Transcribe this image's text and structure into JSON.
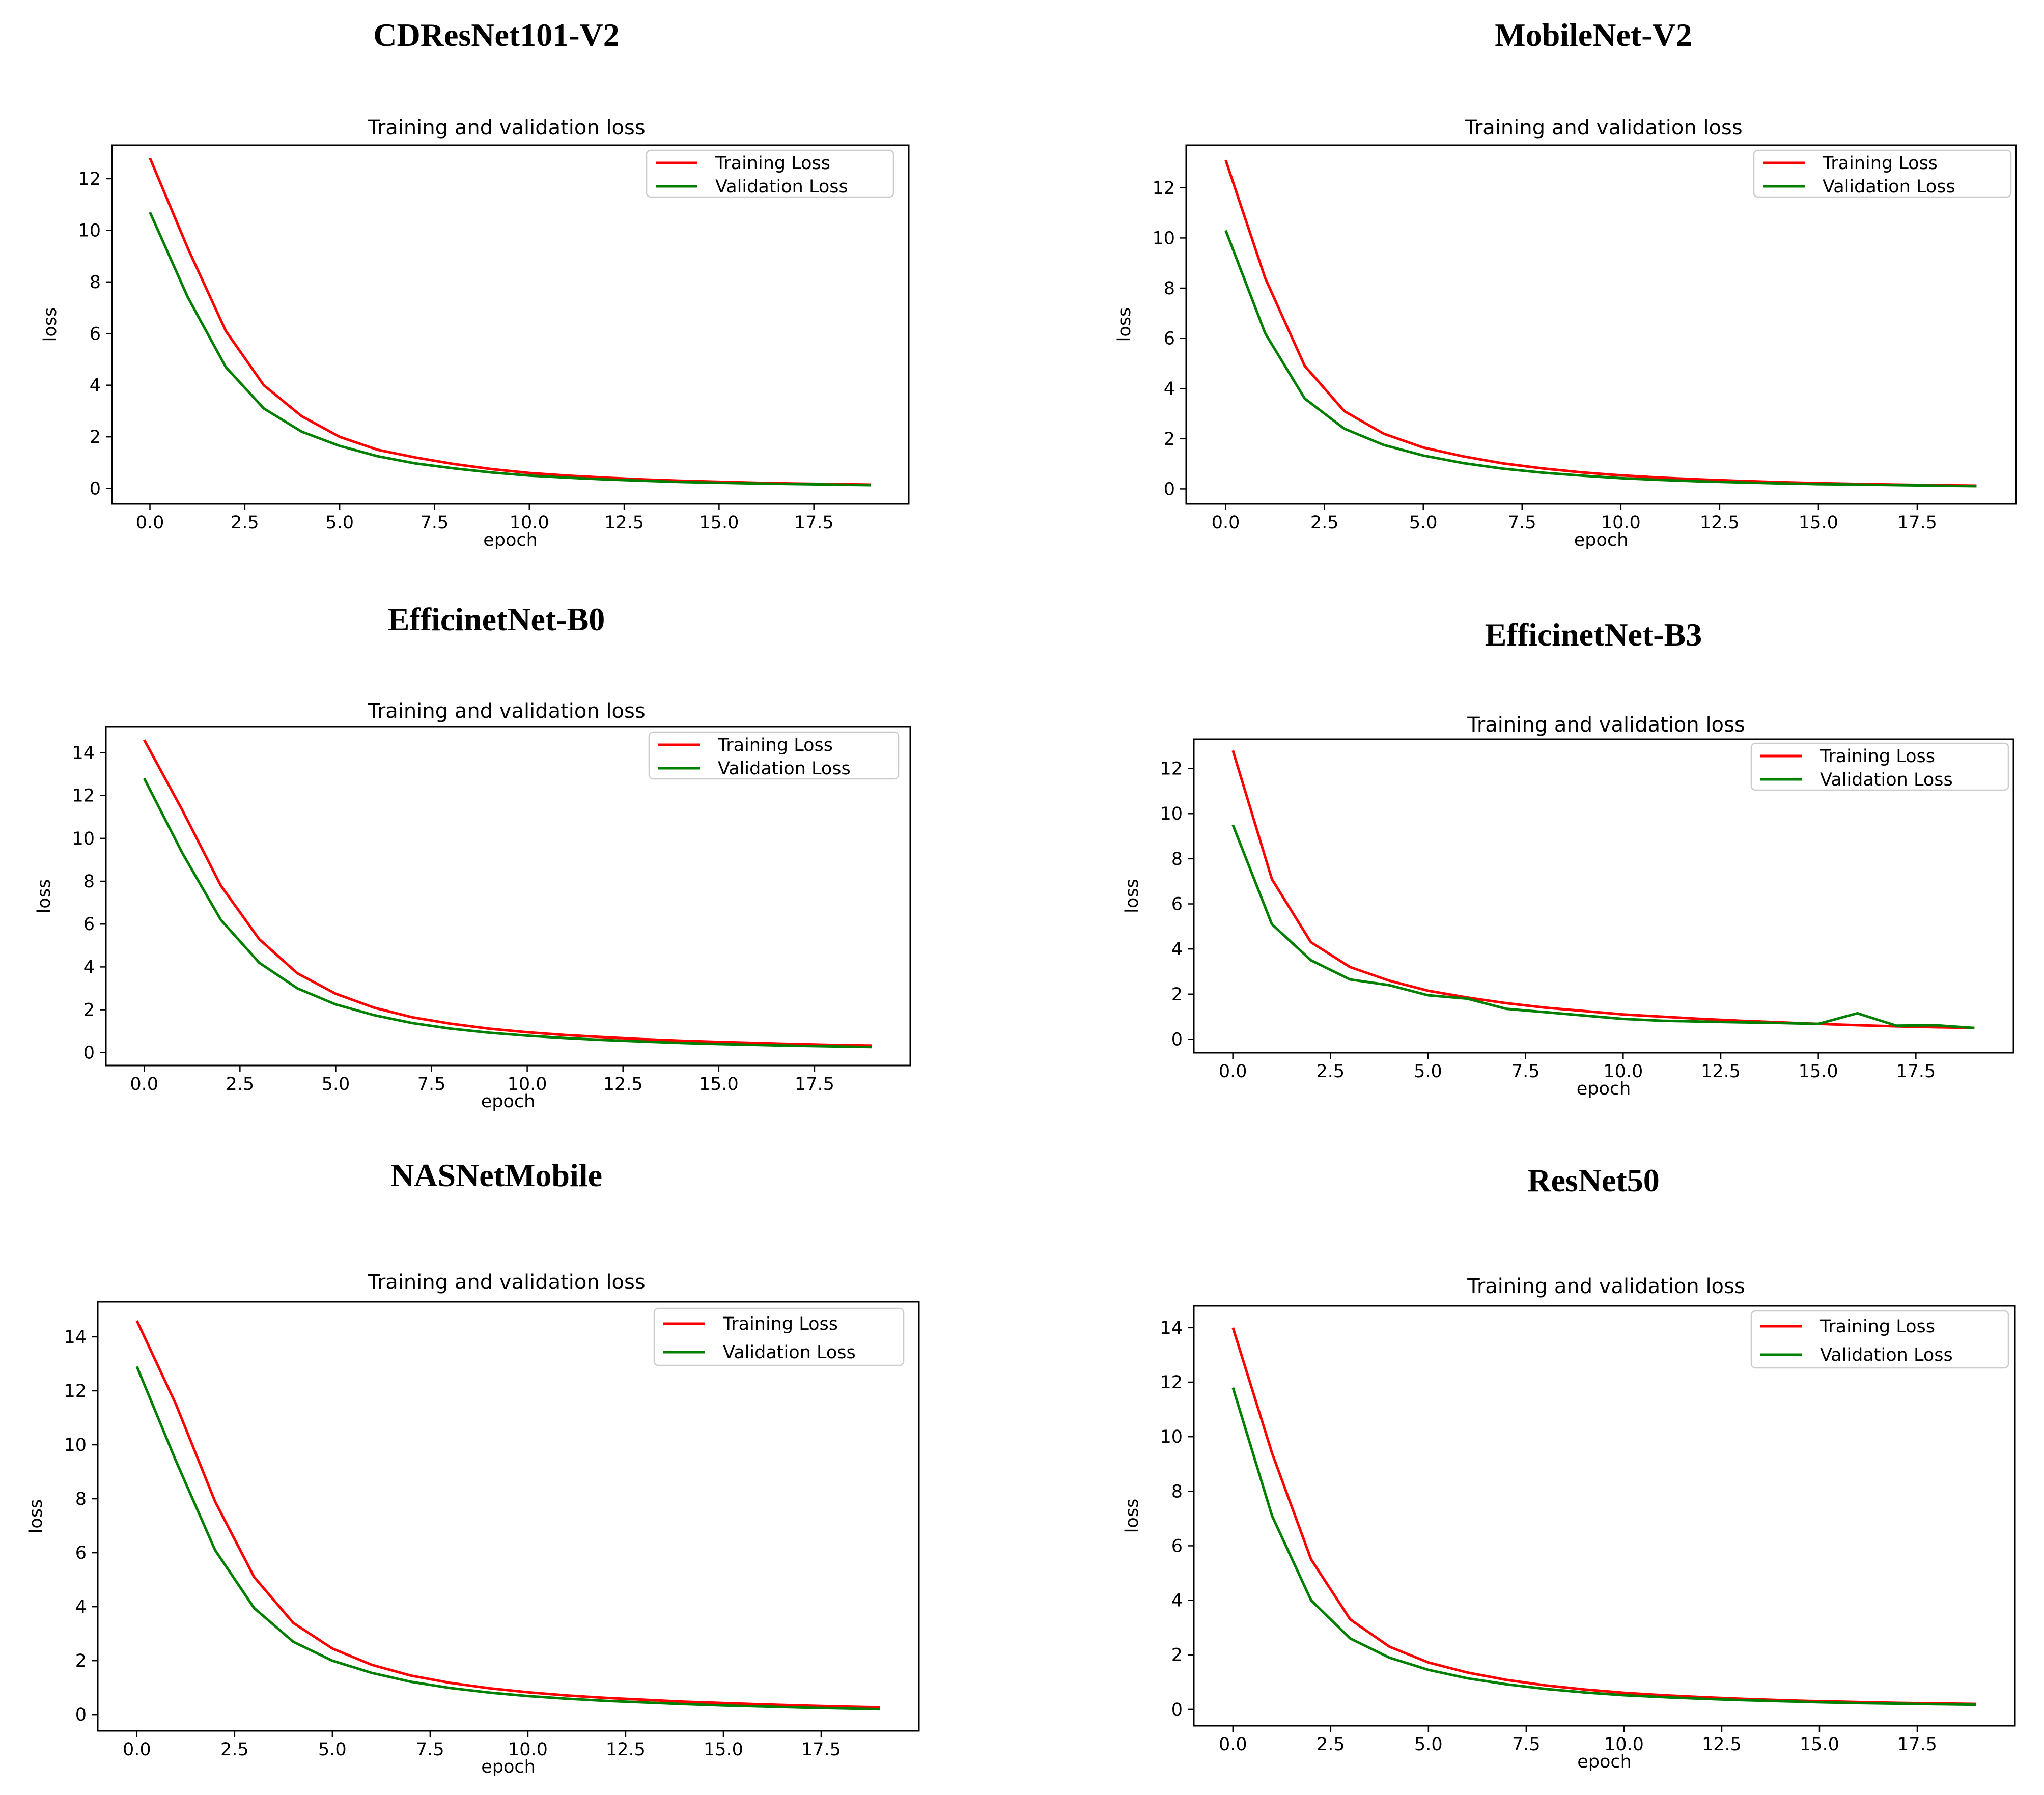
{
  "colors": {
    "training": "#ff0000",
    "validation": "#008000",
    "axis": "#000000"
  },
  "chart_data": [
    {
      "type": "line",
      "heading": "CDResNet101-V2",
      "title": "Training and validation loss",
      "xlabel": "epoch",
      "ylabel": "loss",
      "xlim": [
        -1,
        20
      ],
      "ylim": [
        -0.6,
        13.3
      ],
      "xticks": [
        "0.0",
        "2.5",
        "5.0",
        "7.5",
        "10.0",
        "12.5",
        "15.0",
        "17.5"
      ],
      "yticks": [
        "0",
        "2",
        "4",
        "6",
        "8",
        "10",
        "12"
      ],
      "legend": "top-right",
      "x": [
        0,
        1,
        2,
        3,
        4,
        5,
        6,
        7,
        8,
        9,
        10,
        11,
        12,
        13,
        14,
        15,
        16,
        17,
        18,
        19
      ],
      "series": [
        {
          "name": "Training Loss",
          "color": "training",
          "values": [
            12.8,
            9.3,
            6.1,
            4.0,
            2.8,
            2.0,
            1.5,
            1.2,
            0.95,
            0.75,
            0.6,
            0.5,
            0.42,
            0.35,
            0.3,
            0.26,
            0.22,
            0.19,
            0.17,
            0.15
          ]
        },
        {
          "name": "Validation Loss",
          "color": "validation",
          "values": [
            10.7,
            7.4,
            4.7,
            3.1,
            2.2,
            1.65,
            1.25,
            0.97,
            0.78,
            0.62,
            0.5,
            0.42,
            0.35,
            0.3,
            0.25,
            0.22,
            0.19,
            0.17,
            0.15,
            0.13
          ]
        }
      ]
    },
    {
      "type": "line",
      "heading": "MobileNet-V2",
      "title": "Training and validation loss",
      "xlabel": "epoch",
      "ylabel": "loss",
      "xlim": [
        -1,
        20
      ],
      "ylim": [
        -0.6,
        13.7
      ],
      "xticks": [
        "0.0",
        "2.5",
        "5.0",
        "7.5",
        "10.0",
        "12.5",
        "15.0",
        "17.5"
      ],
      "yticks": [
        "0",
        "2",
        "4",
        "6",
        "8",
        "10",
        "12"
      ],
      "legend": "top-right",
      "x": [
        0,
        1,
        2,
        3,
        4,
        5,
        6,
        7,
        8,
        9,
        10,
        11,
        12,
        13,
        14,
        15,
        16,
        17,
        18,
        19
      ],
      "series": [
        {
          "name": "Training Loss",
          "color": "training",
          "values": [
            13.1,
            8.4,
            4.9,
            3.1,
            2.2,
            1.65,
            1.3,
            1.02,
            0.82,
            0.66,
            0.54,
            0.45,
            0.38,
            0.32,
            0.27,
            0.23,
            0.2,
            0.17,
            0.15,
            0.13
          ]
        },
        {
          "name": "Validation Loss",
          "color": "validation",
          "values": [
            10.3,
            6.2,
            3.6,
            2.4,
            1.75,
            1.33,
            1.03,
            0.81,
            0.65,
            0.53,
            0.43,
            0.36,
            0.3,
            0.26,
            0.22,
            0.19,
            0.17,
            0.15,
            0.13,
            0.11
          ]
        }
      ]
    },
    {
      "type": "line",
      "heading": "EfficinetNet-B0",
      "title": "Training and validation loss",
      "xlabel": "epoch",
      "ylabel": "loss",
      "xlim": [
        -1,
        20
      ],
      "ylim": [
        -0.6,
        15.2
      ],
      "xticks": [
        "0.0",
        "2.5",
        "5.0",
        "7.5",
        "10.0",
        "12.5",
        "15.0",
        "17.5"
      ],
      "yticks": [
        "0",
        "2",
        "4",
        "6",
        "8",
        "10",
        "12",
        "14"
      ],
      "legend": "top-right",
      "x": [
        0,
        1,
        2,
        3,
        4,
        5,
        6,
        7,
        8,
        9,
        10,
        11,
        12,
        13,
        14,
        15,
        16,
        17,
        18,
        19
      ],
      "series": [
        {
          "name": "Training Loss",
          "color": "training",
          "values": [
            14.6,
            11.3,
            7.8,
            5.3,
            3.7,
            2.75,
            2.1,
            1.65,
            1.35,
            1.12,
            0.95,
            0.82,
            0.72,
            0.63,
            0.56,
            0.5,
            0.45,
            0.4,
            0.36,
            0.33
          ]
        },
        {
          "name": "Validation Loss",
          "color": "validation",
          "values": [
            12.8,
            9.3,
            6.2,
            4.2,
            3.0,
            2.25,
            1.75,
            1.38,
            1.12,
            0.93,
            0.79,
            0.68,
            0.59,
            0.52,
            0.45,
            0.4,
            0.36,
            0.32,
            0.29,
            0.26
          ]
        }
      ]
    },
    {
      "type": "line",
      "heading": "EfficinetNet-B3",
      "title": "Training and validation loss",
      "xlabel": "epoch",
      "ylabel": "loss",
      "xlim": [
        -1,
        20
      ],
      "ylim": [
        -0.6,
        13.3
      ],
      "xticks": [
        "0.0",
        "2.5",
        "5.0",
        "7.5",
        "10.0",
        "12.5",
        "15.0",
        "17.5"
      ],
      "yticks": [
        "0",
        "2",
        "4",
        "6",
        "8",
        "10",
        "12"
      ],
      "legend": "top-right",
      "x": [
        0,
        1,
        2,
        3,
        4,
        5,
        6,
        7,
        8,
        9,
        10,
        11,
        12,
        13,
        14,
        15,
        16,
        17,
        18,
        19
      ],
      "series": [
        {
          "name": "Training Loss",
          "color": "training",
          "values": [
            12.8,
            7.1,
            4.3,
            3.2,
            2.6,
            2.15,
            1.85,
            1.6,
            1.4,
            1.25,
            1.1,
            1.0,
            0.9,
            0.82,
            0.75,
            0.68,
            0.62,
            0.57,
            0.53,
            0.5
          ]
        },
        {
          "name": "Validation Loss",
          "color": "validation",
          "values": [
            9.5,
            5.1,
            3.5,
            2.65,
            2.4,
            1.95,
            1.8,
            1.35,
            1.2,
            1.05,
            0.9,
            0.82,
            0.78,
            0.75,
            0.72,
            0.68,
            1.15,
            0.6,
            0.62,
            0.5
          ]
        }
      ]
    },
    {
      "type": "line",
      "heading": "NASNetMobile",
      "title": "Training and validation loss",
      "xlabel": "epoch",
      "ylabel": "loss",
      "xlim": [
        -1,
        20
      ],
      "ylim": [
        -0.6,
        15.3
      ],
      "xticks": [
        "0.0",
        "2.5",
        "5.0",
        "7.5",
        "10.0",
        "12.5",
        "15.0",
        "17.5"
      ],
      "yticks": [
        "0",
        "2",
        "4",
        "6",
        "8",
        "10",
        "12",
        "14"
      ],
      "legend": "top-right",
      "x": [
        0,
        1,
        2,
        3,
        4,
        5,
        6,
        7,
        8,
        9,
        10,
        11,
        12,
        13,
        14,
        15,
        16,
        17,
        18,
        19
      ],
      "series": [
        {
          "name": "Training Loss",
          "color": "training",
          "values": [
            14.6,
            11.5,
            7.9,
            5.1,
            3.4,
            2.45,
            1.85,
            1.45,
            1.18,
            0.98,
            0.83,
            0.71,
            0.62,
            0.55,
            0.48,
            0.43,
            0.38,
            0.34,
            0.3,
            0.27
          ]
        },
        {
          "name": "Validation Loss",
          "color": "validation",
          "values": [
            12.9,
            9.4,
            6.1,
            3.95,
            2.7,
            2.0,
            1.55,
            1.22,
            0.99,
            0.82,
            0.69,
            0.59,
            0.51,
            0.45,
            0.39,
            0.34,
            0.3,
            0.26,
            0.23,
            0.2
          ]
        }
      ]
    },
    {
      "type": "line",
      "heading": "ResNet50",
      "title": "Training and validation loss",
      "xlabel": "epoch",
      "ylabel": "loss",
      "xlim": [
        -1,
        20
      ],
      "ylim": [
        -0.6,
        14.8
      ],
      "xticks": [
        "0.0",
        "2.5",
        "5.0",
        "7.5",
        "10.0",
        "12.5",
        "15.0",
        "17.5"
      ],
      "yticks": [
        "0",
        "2",
        "4",
        "6",
        "8",
        "10",
        "12",
        "14"
      ],
      "legend": "top-right",
      "x": [
        0,
        1,
        2,
        3,
        4,
        5,
        6,
        7,
        8,
        9,
        10,
        11,
        12,
        13,
        14,
        15,
        16,
        17,
        18,
        19
      ],
      "series": [
        {
          "name": "Training Loss",
          "color": "training",
          "values": [
            14.0,
            9.4,
            5.5,
            3.3,
            2.3,
            1.72,
            1.35,
            1.08,
            0.88,
            0.73,
            0.61,
            0.52,
            0.45,
            0.39,
            0.34,
            0.3,
            0.27,
            0.24,
            0.22,
            0.2
          ]
        },
        {
          "name": "Validation Loss",
          "color": "validation",
          "values": [
            11.8,
            7.1,
            4.0,
            2.6,
            1.9,
            1.45,
            1.14,
            0.92,
            0.75,
            0.62,
            0.52,
            0.45,
            0.39,
            0.34,
            0.3,
            0.26,
            0.23,
            0.21,
            0.19,
            0.17
          ]
        }
      ]
    }
  ]
}
